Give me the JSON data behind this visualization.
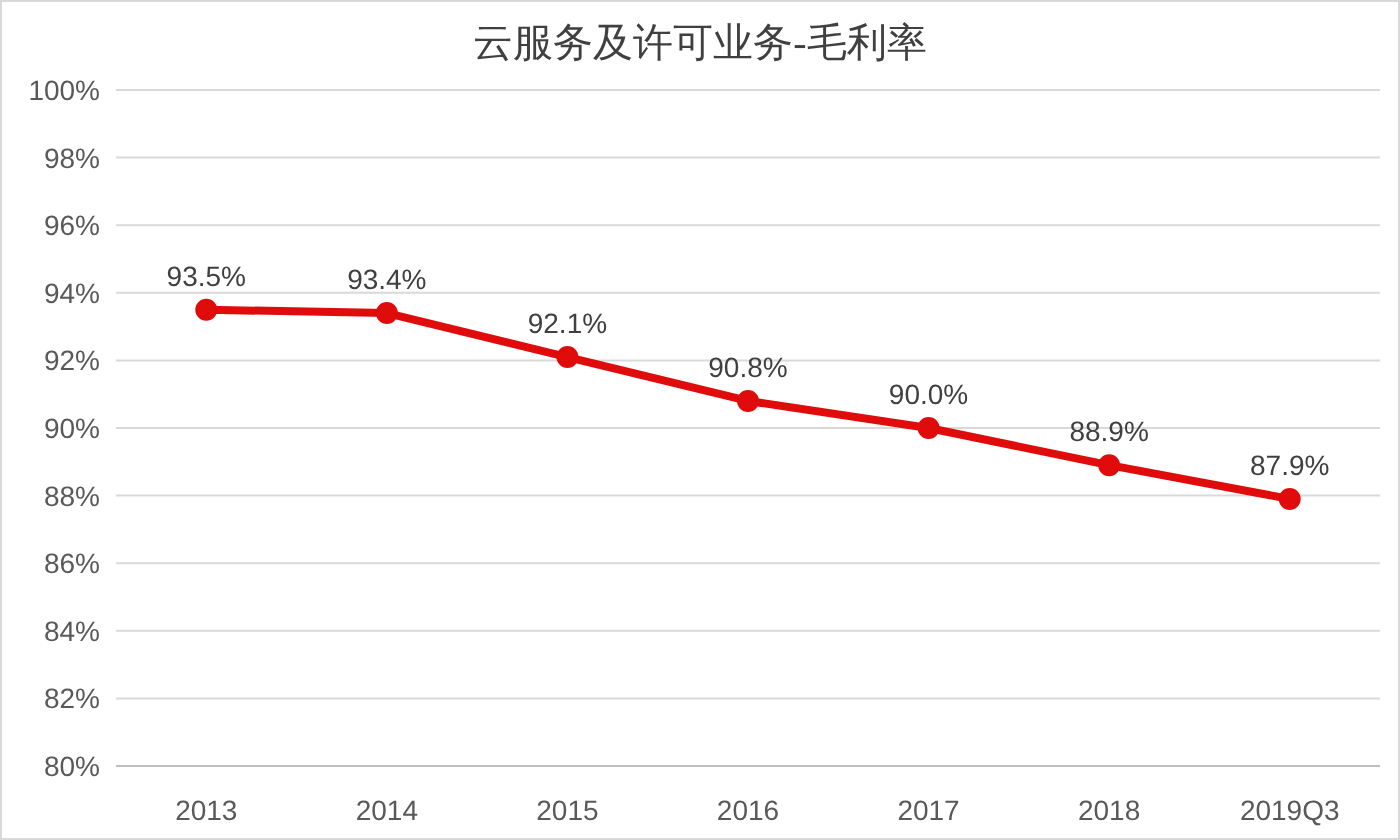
{
  "chart_data": {
    "type": "line",
    "title": "云服务及许可业务-毛利率",
    "categories": [
      "2013",
      "2014",
      "2015",
      "2016",
      "2017",
      "2018",
      "2019Q3"
    ],
    "series": [
      {
        "color": "#e00b0b",
        "values": [
          93.5,
          93.4,
          92.1,
          90.8,
          90.0,
          88.9,
          87.9
        ],
        "value_labels": [
          "93.5%",
          "93.4%",
          "92.1%",
          "90.8%",
          "90.0%",
          "88.9%",
          "87.9%"
        ]
      }
    ],
    "ylim": [
      80,
      100
    ],
    "yticks": [
      {
        "value": 80,
        "label": "80%"
      },
      {
        "value": 82,
        "label": "82%"
      },
      {
        "value": 84,
        "label": "84%"
      },
      {
        "value": 86,
        "label": "86%"
      },
      {
        "value": 88,
        "label": "88%"
      },
      {
        "value": 90,
        "label": "90%"
      },
      {
        "value": 92,
        "label": "92%"
      },
      {
        "value": 94,
        "label": "94%"
      },
      {
        "value": 96,
        "label": "96%"
      },
      {
        "value": 98,
        "label": "98%"
      },
      {
        "value": 100,
        "label": "100%"
      }
    ],
    "grid": "y",
    "marker": "circle",
    "line_style": "solid"
  }
}
